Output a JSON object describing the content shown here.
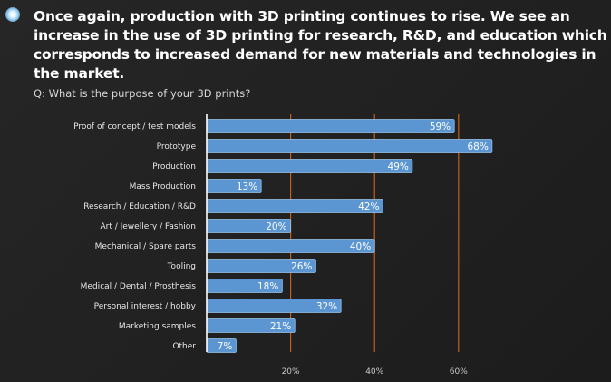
{
  "headline": "Once again, production with 3D printing continues to rise. We see an increase in the use of 3D printing for research, R&D, and education which corresponds to increased demand for new materials and technologies in the market.",
  "question": "Q: What is the purpose of your 3D prints?",
  "colors": {
    "bar": "#5b95d2",
    "bar_border": "#9cc3ea",
    "gridline": "#c0601a",
    "axis": "#ffffff"
  },
  "chart_data": {
    "type": "bar",
    "orientation": "horizontal",
    "title": "Q: What is the purpose of your 3D prints?",
    "categories": [
      "Proof of concept / test models",
      "Prototype",
      "Production",
      "Mass Production",
      "Research / Education / R&D",
      "Art / Jewellery / Fashion",
      "Mechanical / Spare parts",
      "Tooling",
      "Medical / Dental / Prosthesis",
      "Personal interest / hobby",
      "Marketing samples",
      "Other"
    ],
    "values": [
      59,
      68,
      49,
      13,
      42,
      20,
      40,
      26,
      18,
      32,
      21,
      7
    ],
    "value_labels": [
      "59%",
      "68%",
      "49%",
      "13%",
      "42%",
      "20%",
      "40%",
      "26%",
      "18%",
      "32%",
      "21%",
      "7%"
    ],
    "xlim": [
      0,
      70
    ],
    "xticks": [
      20,
      40,
      60
    ],
    "xtick_labels": [
      "20%",
      "40%",
      "60%"
    ],
    "xlabel": "",
    "ylabel": "",
    "grid": true
  }
}
